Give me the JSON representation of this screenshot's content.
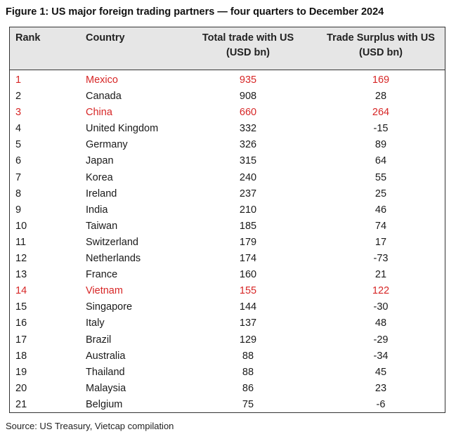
{
  "title": "Figure 1: US major foreign trading partners — four quarters to December 2024",
  "headers": {
    "rank": "Rank",
    "country": "Country",
    "total_line1": "Total trade with US",
    "total_line2": "(USD bn)",
    "surplus_line1": "Trade Surplus with US",
    "surplus_line2": "(USD bn)"
  },
  "highlight_color": "#d72626",
  "rows": [
    {
      "rank": "1",
      "country": "Mexico",
      "total": "935",
      "surplus": "169",
      "highlight": true
    },
    {
      "rank": "2",
      "country": "Canada",
      "total": "908",
      "surplus": "28",
      "highlight": false
    },
    {
      "rank": "3",
      "country": "China",
      "total": "660",
      "surplus": "264",
      "highlight": true
    },
    {
      "rank": "4",
      "country": "United Kingdom",
      "total": "332",
      "surplus": "-15",
      "highlight": false
    },
    {
      "rank": "5",
      "country": "Germany",
      "total": "326",
      "surplus": "89",
      "highlight": false
    },
    {
      "rank": "6",
      "country": "Japan",
      "total": "315",
      "surplus": "64",
      "highlight": false
    },
    {
      "rank": "7",
      "country": "Korea",
      "total": "240",
      "surplus": "55",
      "highlight": false
    },
    {
      "rank": "8",
      "country": "Ireland",
      "total": "237",
      "surplus": "25",
      "highlight": false
    },
    {
      "rank": "9",
      "country": "India",
      "total": "210",
      "surplus": "46",
      "highlight": false
    },
    {
      "rank": "10",
      "country": "Taiwan",
      "total": "185",
      "surplus": "74",
      "highlight": false
    },
    {
      "rank": "11",
      "country": "Switzerland",
      "total": "179",
      "surplus": "17",
      "highlight": false
    },
    {
      "rank": "12",
      "country": "Netherlands",
      "total": "174",
      "surplus": "-73",
      "highlight": false
    },
    {
      "rank": "13",
      "country": "France",
      "total": "160",
      "surplus": "21",
      "highlight": false
    },
    {
      "rank": "14",
      "country": "Vietnam",
      "total": "155",
      "surplus": "122",
      "highlight": true
    },
    {
      "rank": "15",
      "country": "Singapore",
      "total": "144",
      "surplus": "-30",
      "highlight": false
    },
    {
      "rank": "16",
      "country": "Italy",
      "total": "137",
      "surplus": "48",
      "highlight": false
    },
    {
      "rank": "17",
      "country": "Brazil",
      "total": "129",
      "surplus": "-29",
      "highlight": false
    },
    {
      "rank": "18",
      "country": "Australia",
      "total": "88",
      "surplus": "-34",
      "highlight": false
    },
    {
      "rank": "19",
      "country": "Thailand",
      "total": "88",
      "surplus": "45",
      "highlight": false
    },
    {
      "rank": "20",
      "country": "Malaysia",
      "total": "86",
      "surplus": "23",
      "highlight": false
    },
    {
      "rank": "21",
      "country": "Belgium",
      "total": "75",
      "surplus": "-6",
      "highlight": false
    }
  ],
  "source": "Source: US Treasury, Vietcap compilation"
}
